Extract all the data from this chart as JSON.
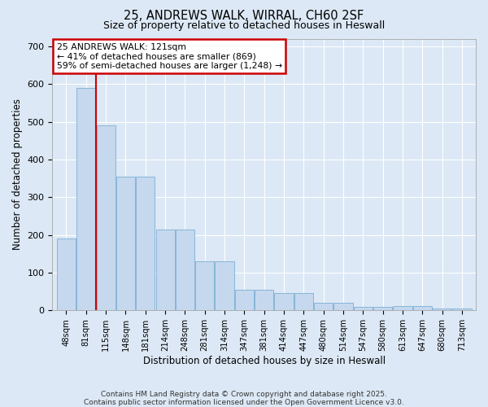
{
  "title1": "25, ANDREWS WALK, WIRRAL, CH60 2SF",
  "title2": "Size of property relative to detached houses in Heswall",
  "xlabel": "Distribution of detached houses by size in Heswall",
  "ylabel": "Number of detached properties",
  "bar_labels": [
    "48sqm",
    "81sqm",
    "115sqm",
    "148sqm",
    "181sqm",
    "214sqm",
    "248sqm",
    "281sqm",
    "314sqm",
    "347sqm",
    "381sqm",
    "414sqm",
    "447sqm",
    "480sqm",
    "514sqm",
    "547sqm",
    "580sqm",
    "613sqm",
    "647sqm",
    "680sqm",
    "713sqm"
  ],
  "bar_heights": [
    190,
    590,
    490,
    355,
    355,
    215,
    215,
    130,
    130,
    55,
    55,
    45,
    45,
    20,
    20,
    10,
    10,
    12,
    12,
    5,
    5
  ],
  "bar_color": "#c5d8ee",
  "bar_edgecolor": "#7bafd4",
  "vline_x_idx": 1.5,
  "vline_color": "#cc0000",
  "annotation_text": "25 ANDREWS WALK: 121sqm\n← 41% of detached houses are smaller (869)\n59% of semi-detached houses are larger (1,248) →",
  "ylim": [
    0,
    720
  ],
  "yticks": [
    0,
    100,
    200,
    300,
    400,
    500,
    600,
    700
  ],
  "background_color": "#dce8f5",
  "grid_color": "#ffffff",
  "footer": "Contains HM Land Registry data © Crown copyright and database right 2025.\nContains public sector information licensed under the Open Government Licence v3.0."
}
